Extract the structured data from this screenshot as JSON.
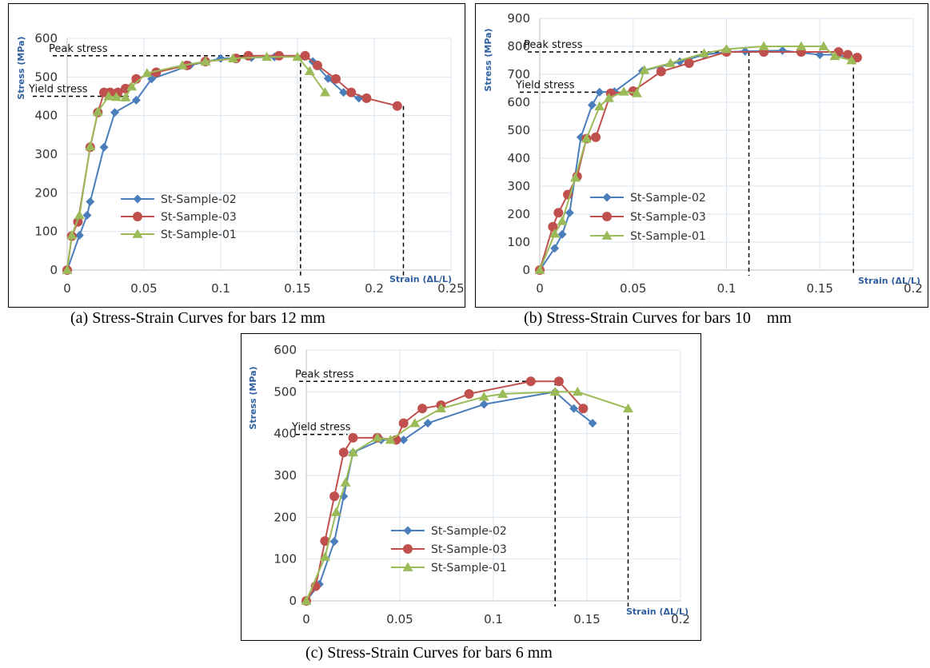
{
  "captions": {
    "a": "(a) Stress-Strain Curves for bars 12 mm",
    "b": "(b) Stress-Strain Curves for bars 10    mm",
    "c": "(c) Stress-Strain Curves for bars 6 mm"
  },
  "colors": {
    "sample02": "#4a7ebb",
    "sample03": "#c0504d",
    "sample01": "#9bbb59",
    "grid": "#dbe6f1",
    "axis": "#bfbfbf"
  },
  "chart_data": [
    {
      "type": "line",
      "ylabel": "Stress (MPa)",
      "xlabel": "Strain (ΔL/L)",
      "xlim": [
        0,
        0.25
      ],
      "ylim": [
        0,
        600
      ],
      "x_ticks": [
        "0",
        "0.05",
        "0.1",
        "0.15",
        "0.2",
        "0.25"
      ],
      "y_ticks": [
        "0",
        "100",
        "200",
        "300",
        "400",
        "500",
        "600"
      ],
      "grid": true,
      "legend_position": "center-left",
      "annotations": [
        {
          "text": "Peak stress",
          "y": 555,
          "x_end": 0.152
        },
        {
          "text": "Yield stress",
          "y": 450,
          "x_end": 0.04
        },
        {
          "text": "",
          "x": 0.152,
          "y_top": 555
        },
        {
          "text": "",
          "x": 0.219,
          "y_top": 425
        }
      ],
      "series": [
        {
          "name": "St-Sample-02",
          "color_key": "sample02",
          "marker": "diamond",
          "x": [
            0,
            0.008,
            0.013,
            0.015,
            0.024,
            0.031,
            0.045,
            0.055,
            0.08,
            0.1,
            0.12,
            0.135,
            0.155,
            0.16,
            0.17,
            0.18,
            0.19
          ],
          "y": [
            0,
            90,
            142,
            177,
            318,
            408,
            440,
            495,
            530,
            548,
            550,
            552,
            555,
            540,
            496,
            460,
            445
          ]
        },
        {
          "name": "St-Sample-03",
          "color_key": "sample03",
          "marker": "circle",
          "x": [
            0,
            0.003,
            0.007,
            0.015,
            0.02,
            0.024,
            0.028,
            0.033,
            0.038,
            0.045,
            0.058,
            0.078,
            0.09,
            0.11,
            0.118,
            0.138,
            0.155,
            0.163,
            0.175,
            0.185,
            0.195,
            0.215
          ],
          "y": [
            0,
            88,
            125,
            318,
            408,
            460,
            460,
            460,
            470,
            495,
            512,
            530,
            540,
            548,
            555,
            555,
            555,
            530,
            495,
            460,
            445,
            425
          ]
        },
        {
          "name": "St-Sample-01",
          "color_key": "sample01",
          "marker": "triangle",
          "x": [
            0,
            0.003,
            0.008,
            0.015,
            0.02,
            0.027,
            0.032,
            0.038,
            0.042,
            0.052,
            0.075,
            0.09,
            0.108,
            0.13,
            0.15,
            0.158,
            0.168
          ],
          "y": [
            0,
            90,
            142,
            320,
            410,
            450,
            448,
            447,
            475,
            510,
            530,
            540,
            548,
            552,
            552,
            515,
            460
          ]
        }
      ]
    },
    {
      "type": "line",
      "ylabel": "Stress (MPa)",
      "xlabel": "Strain (ΔL/L)",
      "xlim": [
        0,
        0.2
      ],
      "ylim": [
        0,
        900
      ],
      "x_ticks": [
        "0",
        "0.05",
        "0.1",
        "0.15",
        "0.2"
      ],
      "y_ticks": [
        "0",
        "100",
        "200",
        "300",
        "400",
        "500",
        "600",
        "700",
        "800",
        "900"
      ],
      "grid": true,
      "legend_position": "center-left",
      "annotations": [
        {
          "text": "Peak stress",
          "y": 780,
          "x_end": 0.112
        },
        {
          "text": "Yield stress",
          "y": 636,
          "x_end": 0.032
        },
        {
          "text": "",
          "x": 0.112,
          "y_top": 780
        },
        {
          "text": "",
          "x": 0.168,
          "y_top": 750
        }
      ],
      "series": [
        {
          "name": "St-Sample-02",
          "color_key": "sample02",
          "marker": "diamond",
          "x": [
            0,
            0.008,
            0.012,
            0.016,
            0.022,
            0.028,
            0.032,
            0.04,
            0.055,
            0.075,
            0.088,
            0.1,
            0.11,
            0.13,
            0.15,
            0.16,
            0.168
          ],
          "y": [
            0,
            78,
            128,
            205,
            475,
            590,
            636,
            638,
            712,
            745,
            770,
            780,
            782,
            785,
            770,
            770,
            750
          ]
        },
        {
          "name": "St-Sample-03",
          "color_key": "sample03",
          "marker": "circle",
          "x": [
            0,
            0.007,
            0.01,
            0.015,
            0.02,
            0.025,
            0.03,
            0.038,
            0.05,
            0.065,
            0.08,
            0.1,
            0.12,
            0.14,
            0.16,
            0.165,
            0.17
          ],
          "y": [
            0,
            155,
            205,
            270,
            335,
            470,
            475,
            632,
            640,
            710,
            740,
            780,
            780,
            780,
            780,
            770,
            760
          ]
        },
        {
          "name": "St-Sample-01",
          "color_key": "sample01",
          "marker": "triangle",
          "x": [
            0,
            0.008,
            0.012,
            0.019,
            0.025,
            0.032,
            0.037,
            0.045,
            0.052,
            0.056,
            0.07,
            0.088,
            0.1,
            0.12,
            0.14,
            0.152,
            0.158,
            0.167
          ],
          "y": [
            0,
            130,
            175,
            330,
            470,
            585,
            615,
            638,
            632,
            715,
            740,
            775,
            790,
            800,
            800,
            800,
            765,
            750
          ]
        }
      ]
    },
    {
      "type": "line",
      "ylabel": "Stress (MPa)",
      "xlabel": "Strain (ΔL/L)",
      "xlim": [
        0,
        0.2
      ],
      "ylim": [
        0,
        600
      ],
      "x_ticks": [
        "0",
        "0.05",
        "0.1",
        "0.15",
        "0.2"
      ],
      "y_ticks": [
        "0",
        "100",
        "200",
        "300",
        "400",
        "500",
        "600"
      ],
      "grid": true,
      "legend_position": "bottom-center",
      "annotations": [
        {
          "text": "Peak stress",
          "y": 525,
          "x_end": 0.133
        },
        {
          "text": "Yield stress",
          "y": 398,
          "x_end": 0.022
        },
        {
          "text": "",
          "x": 0.133,
          "y_top": 525
        },
        {
          "text": "",
          "x": 0.172,
          "y_top": 460
        }
      ],
      "series": [
        {
          "name": "St-Sample-02",
          "color_key": "sample02",
          "marker": "diamond",
          "x": [
            0,
            0.007,
            0.015,
            0.02,
            0.025,
            0.04,
            0.052,
            0.065,
            0.095,
            0.133,
            0.143,
            0.153
          ],
          "y": [
            0,
            40,
            142,
            250,
            355,
            385,
            385,
            425,
            470,
            500,
            460,
            425
          ]
        },
        {
          "name": "St-Sample-03",
          "color_key": "sample03",
          "marker": "circle",
          "x": [
            0,
            0.005,
            0.01,
            0.015,
            0.02,
            0.025,
            0.038,
            0.048,
            0.052,
            0.062,
            0.072,
            0.087,
            0.12,
            0.135,
            0.148
          ],
          "y": [
            0,
            35,
            143,
            250,
            355,
            390,
            390,
            385,
            425,
            460,
            468,
            495,
            525,
            525,
            460
          ]
        },
        {
          "name": "St-Sample-01",
          "color_key": "sample01",
          "marker": "triangle",
          "x": [
            0,
            0.01,
            0.016,
            0.021,
            0.025,
            0.038,
            0.045,
            0.058,
            0.072,
            0.095,
            0.105,
            0.133,
            0.145,
            0.172
          ],
          "y": [
            0,
            105,
            212,
            283,
            355,
            390,
            385,
            425,
            460,
            488,
            495,
            500,
            500,
            460
          ]
        }
      ]
    }
  ]
}
